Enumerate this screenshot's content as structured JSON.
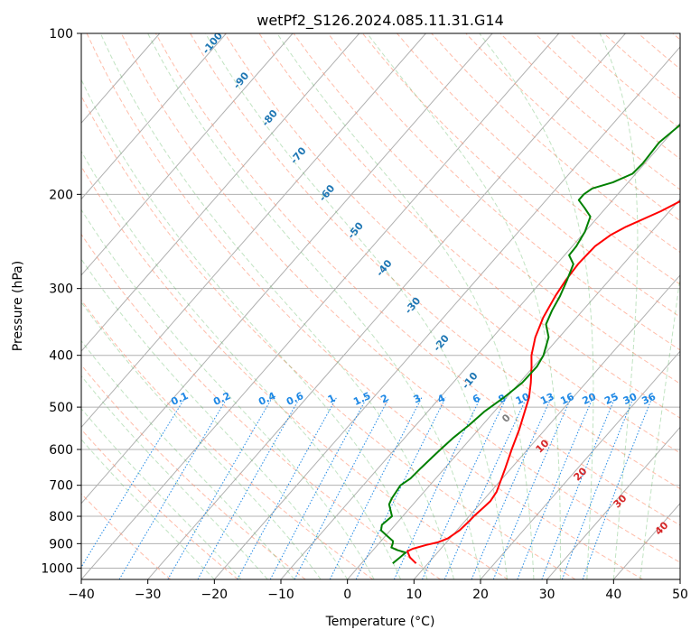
{
  "chart_data": {
    "type": "line",
    "title": "wetPf2_S126.2024.085.11.31.G14",
    "xlabel": "Temperature (°C)",
    "ylabel": "Pressure (hPa)",
    "xlim": [
      -40,
      50
    ],
    "ylim": [
      1050,
      100
    ],
    "y_scale": "log",
    "grid": true,
    "x_ticks": [
      "−40",
      "−30",
      "−20",
      "−10",
      "0",
      "10",
      "20",
      "30",
      "40",
      "50"
    ],
    "x_tick_values": [
      -40,
      -30,
      -20,
      -10,
      0,
      10,
      20,
      30,
      40,
      50
    ],
    "y_ticks": [
      "100",
      "200",
      "300",
      "400",
      "500",
      "600",
      "700",
      "800",
      "900",
      "1000"
    ],
    "y_tick_values": [
      100,
      200,
      300,
      400,
      500,
      600,
      700,
      800,
      900,
      1000
    ],
    "series": [
      {
        "color": "#ff0000",
        "pressure": [
          980,
          955,
          930,
          920,
          905,
          895,
          880,
          850,
          820,
          800,
          770,
          750,
          720,
          700,
          650,
          600,
          550,
          510,
          480,
          450,
          420,
          400,
          370,
          340,
          310,
          290,
          270,
          250,
          238,
          230,
          215,
          200,
          185,
          170,
          160,
          150,
          140,
          130,
          120,
          110,
          100
        ],
        "temperature": [
          8.2,
          6.5,
          5.3,
          5.8,
          7.3,
          8.7,
          9.7,
          10.4,
          10.6,
          10.7,
          11.0,
          11.2,
          10.9,
          10.4,
          9.1,
          7.6,
          6.1,
          4.6,
          3.4,
          1.7,
          -0.3,
          -1.8,
          -3.6,
          -5.0,
          -6.0,
          -6.5,
          -6.8,
          -6.6,
          -5.7,
          -4.5,
          -1.3,
          1.4,
          4.7,
          7.5,
          9.4,
          10.9,
          12.4,
          13.6,
          15.0,
          16.5,
          18.0
        ]
      },
      {
        "color": "#008000",
        "pressure": [
          980,
          955,
          935,
          925,
          915,
          900,
          890,
          870,
          850,
          830,
          800,
          780,
          760,
          740,
          720,
          700,
          680,
          650,
          620,
          600,
          570,
          540,
          510,
          480,
          450,
          420,
          400,
          370,
          350,
          330,
          310,
          290,
          270,
          260,
          250,
          235,
          220,
          212,
          205,
          200,
          195,
          190,
          183,
          175,
          160,
          145,
          135,
          125,
          115,
          105,
          100
        ],
        "temperature": [
          4.7,
          5.0,
          5.2,
          3.6,
          2.4,
          2.1,
          1.8,
          0.2,
          -1.4,
          -2.0,
          -1.6,
          -2.6,
          -3.6,
          -4.0,
          -4.2,
          -4.4,
          -3.8,
          -3.6,
          -3.3,
          -3.1,
          -2.7,
          -2.0,
          -1.5,
          -0.4,
          0.4,
          0.5,
          0.0,
          -1.6,
          -3.7,
          -4.6,
          -5.3,
          -6.3,
          -7.5,
          -9.3,
          -9.4,
          -10.0,
          -11.2,
          -13.2,
          -15.1,
          -15.1,
          -14.6,
          -12.3,
          -10.5,
          -10.3,
          -10.6,
          -9.5,
          -8.0,
          -7.0,
          -5.5,
          -3.5,
          -1.5
        ]
      }
    ],
    "mixing_ratio_labels": [
      "0.1",
      "0.2",
      "0.4",
      "0.6",
      "1",
      "1.5",
      "2",
      "3",
      "4",
      "6",
      "8",
      "10",
      "13",
      "16",
      "20",
      "25",
      "30",
      "36"
    ],
    "mixing_ratio_values": [
      0.1,
      0.2,
      0.4,
      0.6,
      1,
      1.5,
      2,
      3,
      4,
      6,
      8,
      10,
      13,
      16,
      20,
      25,
      30,
      36
    ],
    "moist_adiabat_labels": [
      {
        "text": "-100",
        "t": -100
      },
      {
        "text": "-90",
        "t": -90
      },
      {
        "text": "-80",
        "t": -80
      },
      {
        "text": "-70",
        "t": -70
      },
      {
        "text": "-60",
        "t": -60
      },
      {
        "text": "-50",
        "t": -50
      },
      {
        "text": "-40",
        "t": -40
      },
      {
        "text": "-30",
        "t": -30
      },
      {
        "text": "-20",
        "t": -20
      },
      {
        "text": "-10",
        "t": -10
      }
    ],
    "isotherm_labels": [
      {
        "text": "0",
        "t": 0,
        "color": "#808080"
      },
      {
        "text": "10",
        "t": 10,
        "color": "#d62728"
      },
      {
        "text": "20",
        "t": 20,
        "color": "#d62728"
      },
      {
        "text": "30",
        "t": 30,
        "color": "#d62728"
      },
      {
        "text": "40",
        "t": 40,
        "color": "#d62728"
      }
    ],
    "colors": {
      "temperature": "#ff0000",
      "dewpoint": "#008000",
      "dry_adiabat": "#ff9070",
      "moist_adiabat": "#4caf50",
      "mixing_ratio": "#1e88e5",
      "moist_label": "#1f77b4",
      "grid": "#b0b0b0",
      "isotherm": "#808080"
    }
  }
}
